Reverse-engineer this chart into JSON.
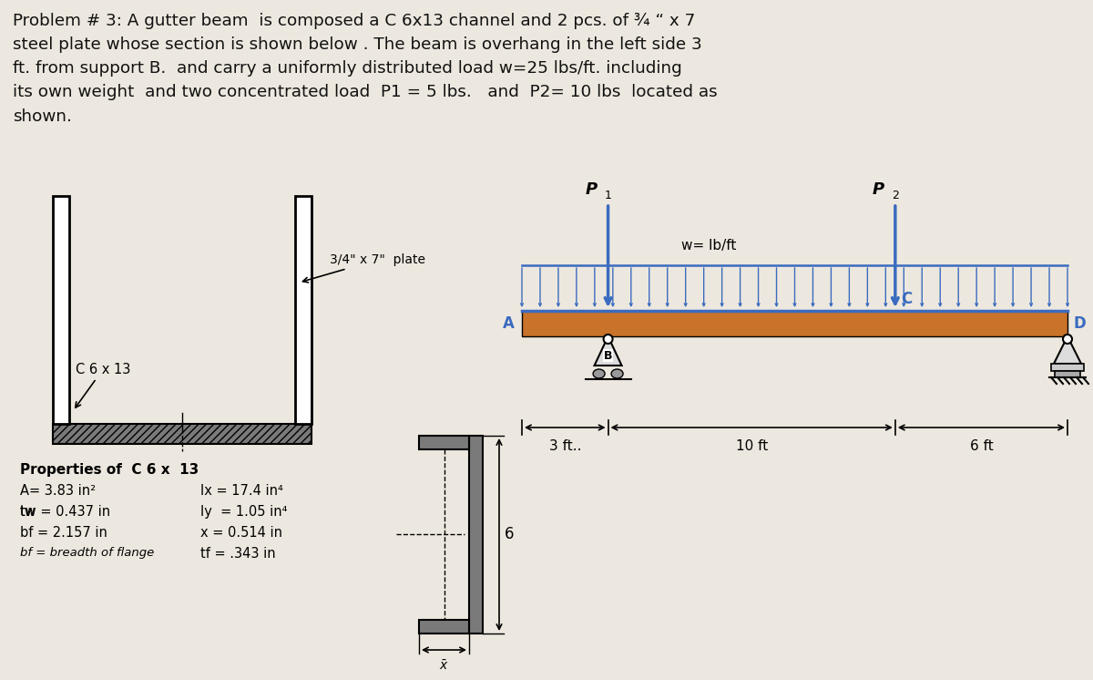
{
  "title_text": "Problem # 3: A gutter beam  is composed a C 6x13 channel and 2 pcs. of ¾ “ x 7\nsteel plate whose section is shown below . The beam is overhang in the left side 3\nft. from support B.  and carry a uniformly distributed load w=25 lbs/ft. including\nits own weight  and two concentrated load  P1 = 5 lbs.   and  P2= 10 lbs  located as\nshown.",
  "bg_color": "#ede8df",
  "beam_color": "#c8722a",
  "udl_color": "#3a6bbf",
  "plate_label": "3/4\" x 7\"  plate",
  "channel_label": "C 6 x 13",
  "props_title": "Properties of  C 6 x  13",
  "span_left": "3 ft..",
  "span_mid": "10 ft",
  "span_right": "6 ft",
  "label_w": "w= lb/ft",
  "label_P1": "P",
  "label_P2": "P",
  "label_A": "A",
  "label_B": "B",
  "label_C": "C",
  "label_D": "D"
}
